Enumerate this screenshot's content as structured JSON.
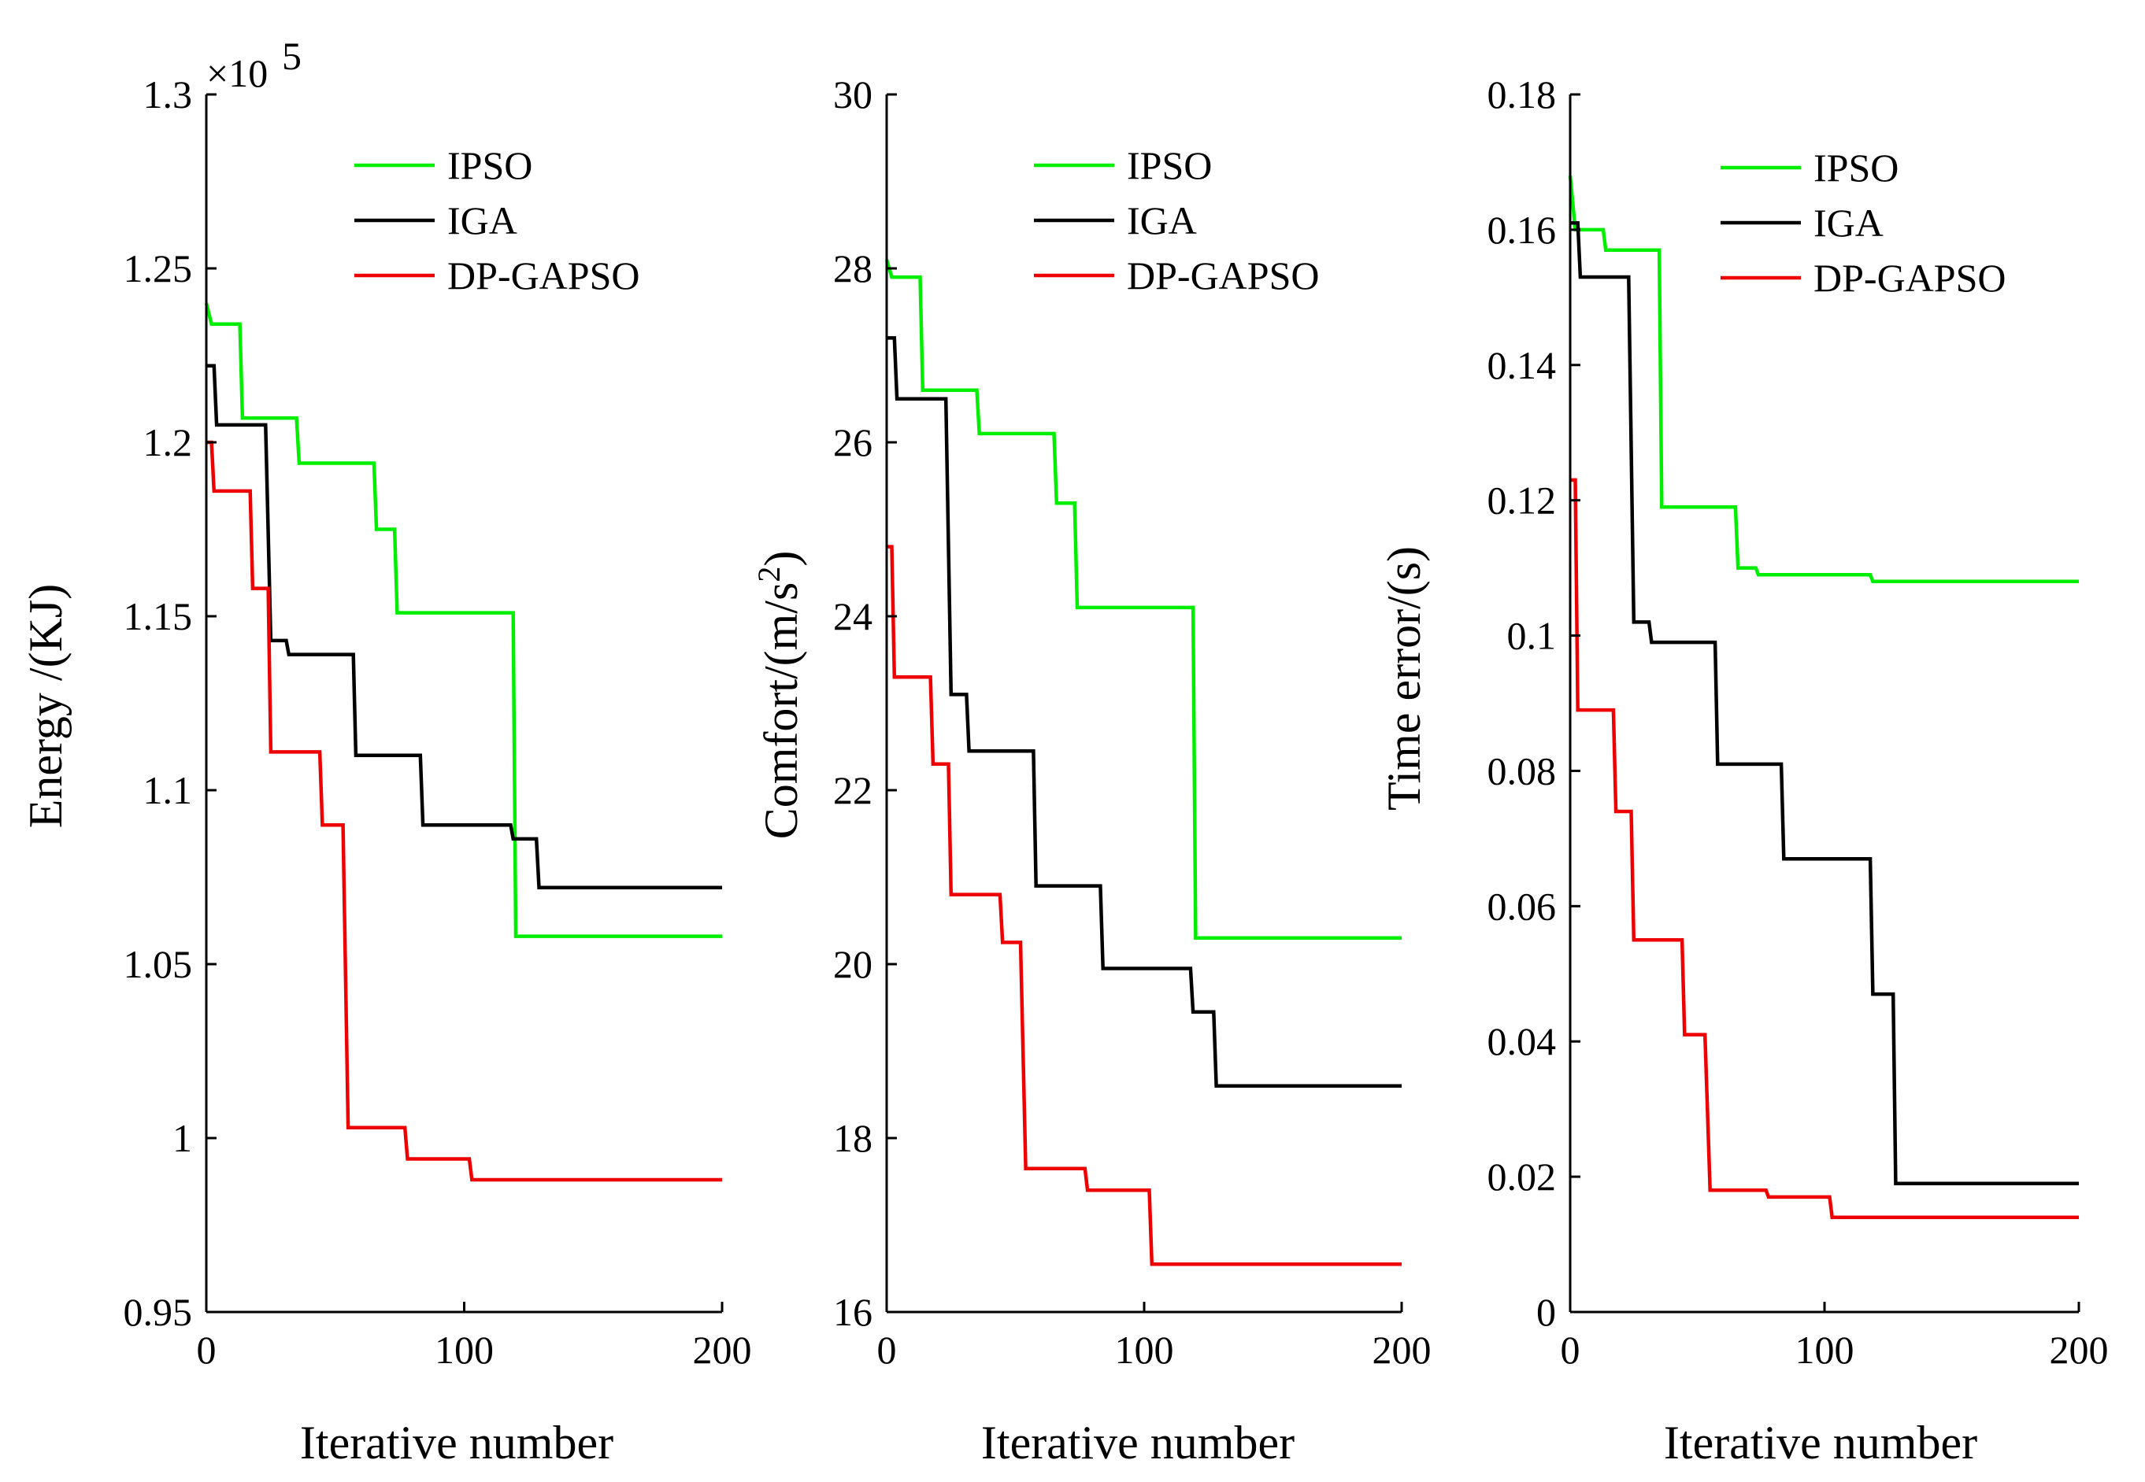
{
  "chart_data": [
    {
      "type": "line",
      "xlabel": "Iterative number",
      "ylabel": "Energy /(KJ)",
      "exponent": {
        "prefix": "×10",
        "power": "5"
      },
      "xlim": [
        0,
        200
      ],
      "ylim": [
        0.95,
        1.3
      ],
      "xticks": [
        "0",
        "100",
        "200"
      ],
      "yticks": [
        "0.95",
        "1",
        "1.05",
        "1.1",
        "1.15",
        "1.2",
        "1.25",
        "1.3"
      ],
      "legend_position": "top-right",
      "series": [
        {
          "name": "IPSO",
          "color": "#00ee00",
          "points": [
            [
              0,
              1.24
            ],
            [
              2,
              1.234
            ],
            [
              13,
              1.234
            ],
            [
              14,
              1.207
            ],
            [
              35,
              1.207
            ],
            [
              36,
              1.194
            ],
            [
              65,
              1.194
            ],
            [
              66,
              1.175
            ],
            [
              73,
              1.175
            ],
            [
              74,
              1.151
            ],
            [
              119,
              1.151
            ],
            [
              120,
              1.058
            ],
            [
              200,
              1.058
            ]
          ]
        },
        {
          "name": "IGA",
          "color": "#000000",
          "points": [
            [
              0,
              1.222
            ],
            [
              3,
              1.222
            ],
            [
              4,
              1.205
            ],
            [
              23,
              1.205
            ],
            [
              25,
              1.143
            ],
            [
              31,
              1.143
            ],
            [
              32,
              1.139
            ],
            [
              57,
              1.139
            ],
            [
              58,
              1.11
            ],
            [
              83,
              1.11
            ],
            [
              84,
              1.09
            ],
            [
              118,
              1.09
            ],
            [
              119,
              1.086
            ],
            [
              128,
              1.086
            ],
            [
              129,
              1.072
            ],
            [
              200,
              1.072
            ]
          ]
        },
        {
          "name": "DP-GAPSO",
          "color": "#ee0000",
          "points": [
            [
              0,
              1.2
            ],
            [
              2,
              1.2
            ],
            [
              3,
              1.186
            ],
            [
              17,
              1.186
            ],
            [
              18,
              1.158
            ],
            [
              24,
              1.158
            ],
            [
              25,
              1.111
            ],
            [
              44,
              1.111
            ],
            [
              45,
              1.09
            ],
            [
              53,
              1.09
            ],
            [
              55,
              1.003
            ],
            [
              77,
              1.003
            ],
            [
              78,
              0.994
            ],
            [
              102,
              0.994
            ],
            [
              103,
              0.988
            ],
            [
              200,
              0.988
            ]
          ]
        }
      ]
    },
    {
      "type": "line",
      "xlabel": "Iterative number",
      "ylabel": "Comfort/(m/s",
      "ylabel_sup": "2",
      "ylabel_end": ")",
      "xlim": [
        0,
        200
      ],
      "ylim": [
        16,
        30
      ],
      "xticks": [
        "0",
        "100",
        "200"
      ],
      "yticks": [
        "16",
        "18",
        "20",
        "22",
        "24",
        "26",
        "28",
        "30"
      ],
      "legend_position": "top-right",
      "series": [
        {
          "name": "IPSO",
          "color": "#00ee00",
          "points": [
            [
              0,
              28.1
            ],
            [
              2,
              27.9
            ],
            [
              13,
              27.9
            ],
            [
              14,
              26.6
            ],
            [
              35,
              26.6
            ],
            [
              36,
              26.1
            ],
            [
              65,
              26.1
            ],
            [
              66,
              25.3
            ],
            [
              73,
              25.3
            ],
            [
              74,
              24.1
            ],
            [
              119,
              24.1
            ],
            [
              120,
              20.3
            ],
            [
              200,
              20.3
            ]
          ]
        },
        {
          "name": "IGA",
          "color": "#000000",
          "points": [
            [
              0,
              27.2
            ],
            [
              3,
              27.2
            ],
            [
              4,
              26.5
            ],
            [
              23,
              26.5
            ],
            [
              25,
              23.1
            ],
            [
              31,
              23.1
            ],
            [
              32,
              22.45
            ],
            [
              57,
              22.45
            ],
            [
              58,
              20.9
            ],
            [
              83,
              20.9
            ],
            [
              84,
              19.95
            ],
            [
              118,
              19.95
            ],
            [
              119,
              19.45
            ],
            [
              127,
              19.45
            ],
            [
              128,
              18.6
            ],
            [
              200,
              18.6
            ]
          ]
        },
        {
          "name": "DP-GAPSO",
          "color": "#ee0000",
          "points": [
            [
              0,
              24.8
            ],
            [
              2,
              24.8
            ],
            [
              3,
              23.3
            ],
            [
              17,
              23.3
            ],
            [
              18,
              22.3
            ],
            [
              24,
              22.3
            ],
            [
              25,
              20.8
            ],
            [
              44,
              20.8
            ],
            [
              45,
              20.25
            ],
            [
              52,
              20.25
            ],
            [
              54,
              17.65
            ],
            [
              77,
              17.65
            ],
            [
              78,
              17.4
            ],
            [
              102,
              17.4
            ],
            [
              103,
              16.55
            ],
            [
              200,
              16.55
            ]
          ]
        }
      ]
    },
    {
      "type": "line",
      "xlabel": "Iterative number",
      "ylabel": "Time error/(s)",
      "xlim": [
        0,
        200
      ],
      "ylim": [
        0,
        0.18
      ],
      "xticks": [
        "0",
        "100",
        "200"
      ],
      "yticks": [
        "0",
        "0.02",
        "0.04",
        "0.06",
        "0.08",
        "0.1",
        "0.12",
        "0.14",
        "0.16",
        "0.18"
      ],
      "legend_position": "top-right",
      "series": [
        {
          "name": "IPSO",
          "color": "#00ee00",
          "points": [
            [
              0,
              0.168
            ],
            [
              2,
              0.16
            ],
            [
              13,
              0.16
            ],
            [
              14,
              0.157
            ],
            [
              35,
              0.157
            ],
            [
              36,
              0.119
            ],
            [
              65,
              0.119
            ],
            [
              66,
              0.11
            ],
            [
              73,
              0.11
            ],
            [
              74,
              0.109
            ],
            [
              118,
              0.109
            ],
            [
              119,
              0.108
            ],
            [
              200,
              0.108
            ]
          ]
        },
        {
          "name": "IGA",
          "color": "#000000",
          "points": [
            [
              0,
              0.161
            ],
            [
              3,
              0.161
            ],
            [
              4,
              0.153
            ],
            [
              23,
              0.153
            ],
            [
              25,
              0.102
            ],
            [
              31,
              0.102
            ],
            [
              32,
              0.099
            ],
            [
              57,
              0.099
            ],
            [
              58,
              0.081
            ],
            [
              83,
              0.081
            ],
            [
              84,
              0.067
            ],
            [
              118,
              0.067
            ],
            [
              119,
              0.047
            ],
            [
              127,
              0.047
            ],
            [
              128,
              0.019
            ],
            [
              200,
              0.019
            ]
          ]
        },
        {
          "name": "DP-GAPSO",
          "color": "#ee0000",
          "points": [
            [
              0,
              0.123
            ],
            [
              2,
              0.123
            ],
            [
              3,
              0.089
            ],
            [
              17,
              0.089
            ],
            [
              18,
              0.074
            ],
            [
              24,
              0.074
            ],
            [
              25,
              0.055
            ],
            [
              44,
              0.055
            ],
            [
              45,
              0.041
            ],
            [
              53,
              0.041
            ],
            [
              55,
              0.018
            ],
            [
              77,
              0.018
            ],
            [
              78,
              0.017
            ],
            [
              102,
              0.017
            ],
            [
              103,
              0.014
            ],
            [
              200,
              0.014
            ]
          ]
        }
      ]
    }
  ]
}
